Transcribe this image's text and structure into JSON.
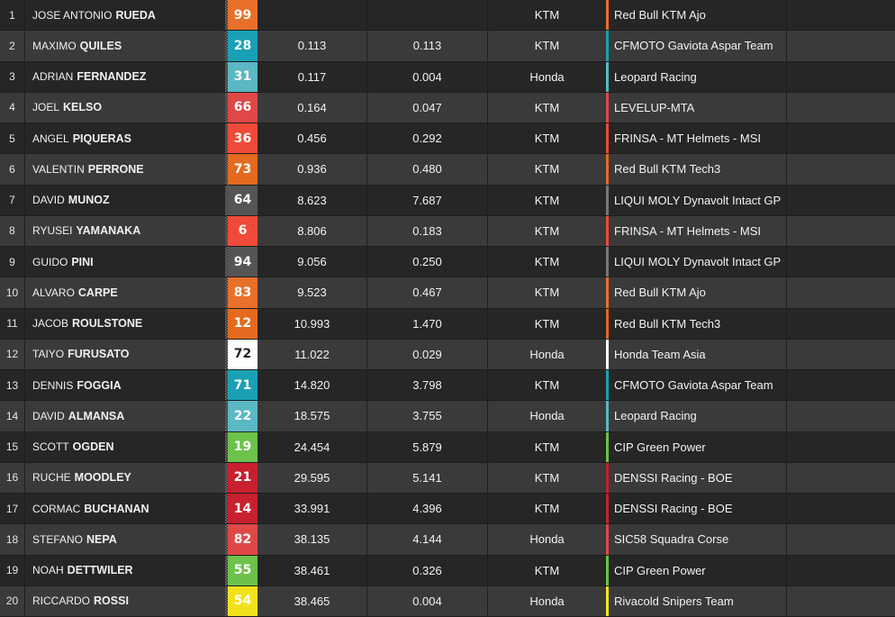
{
  "results": [
    {
      "pos": "1",
      "first": "JOSE ANTONIO",
      "last": "RUEDA",
      "number": "99",
      "num_color": "#e8702a",
      "gap_first": "",
      "gap_prev": "",
      "manufacturer": "KTM",
      "team": "Red Bull KTM Ajo",
      "team_color": "#e8702a"
    },
    {
      "pos": "2",
      "first": "MAXIMO",
      "last": "QUILES",
      "number": "28",
      "num_color": "#1aa0b4",
      "gap_first": "0.113",
      "gap_prev": "0.113",
      "manufacturer": "KTM",
      "team": "CFMOTO Gaviota Aspar Team",
      "team_color": "#1aa0b4"
    },
    {
      "pos": "3",
      "first": "ADRIAN",
      "last": "FERNANDEZ",
      "number": "31",
      "num_color": "#5bb8c4",
      "gap_first": "0.117",
      "gap_prev": "0.004",
      "manufacturer": "Honda",
      "team": "Leopard Racing",
      "team_color": "#5bb8c4"
    },
    {
      "pos": "4",
      "first": "JOEL",
      "last": "KELSO",
      "number": "66",
      "num_color": "#e04848",
      "gap_first": "0.164",
      "gap_prev": "0.047",
      "manufacturer": "KTM",
      "team": "LEVELUP-MTA",
      "team_color": "#e04848"
    },
    {
      "pos": "5",
      "first": "ANGEL",
      "last": "PIQUERAS",
      "number": "36",
      "num_color": "#f04a3a",
      "gap_first": "0.456",
      "gap_prev": "0.292",
      "manufacturer": "KTM",
      "team": "FRINSA - MT Helmets - MSI",
      "team_color": "#f04a3a"
    },
    {
      "pos": "6",
      "first": "VALENTIN",
      "last": "PERRONE",
      "number": "73",
      "num_color": "#e36a1e",
      "gap_first": "0.936",
      "gap_prev": "0.480",
      "manufacturer": "KTM",
      "team": "Red Bull KTM Tech3",
      "team_color": "#e36a1e"
    },
    {
      "pos": "7",
      "first": "DAVID",
      "last": "MUNOZ",
      "number": "64",
      "num_color": "#555555",
      "gap_first": "8.623",
      "gap_prev": "7.687",
      "manufacturer": "KTM",
      "team": "LIQUI MOLY Dynavolt Intact GP",
      "team_color": "#777777"
    },
    {
      "pos": "8",
      "first": "RYUSEI",
      "last": "YAMANAKA",
      "number": "6",
      "num_color": "#f04a3a",
      "gap_first": "8.806",
      "gap_prev": "0.183",
      "manufacturer": "KTM",
      "team": "FRINSA - MT Helmets - MSI",
      "team_color": "#f04a3a"
    },
    {
      "pos": "9",
      "first": "GUIDO",
      "last": "PINI",
      "number": "94",
      "num_color": "#555555",
      "gap_first": "9.056",
      "gap_prev": "0.250",
      "manufacturer": "KTM",
      "team": "LIQUI MOLY Dynavolt Intact GP",
      "team_color": "#777777"
    },
    {
      "pos": "10",
      "first": "ALVARO",
      "last": "CARPE",
      "number": "83",
      "num_color": "#e8702a",
      "gap_first": "9.523",
      "gap_prev": "0.467",
      "manufacturer": "KTM",
      "team": "Red Bull KTM Ajo",
      "team_color": "#e8702a"
    },
    {
      "pos": "11",
      "first": "JACOB",
      "last": "ROULSTONE",
      "number": "12",
      "num_color": "#e36a1e",
      "gap_first": "10.993",
      "gap_prev": "1.470",
      "manufacturer": "KTM",
      "team": "Red Bull KTM Tech3",
      "team_color": "#e36a1e"
    },
    {
      "pos": "12",
      "first": "TAIYO",
      "last": "FURUSATO",
      "number": "72",
      "num_color": "#ffffff",
      "num_text": "#222222",
      "gap_first": "11.022",
      "gap_prev": "0.029",
      "manufacturer": "Honda",
      "team": "Honda Team Asia",
      "team_color": "#ffffff"
    },
    {
      "pos": "13",
      "first": "DENNIS",
      "last": "FOGGIA",
      "number": "71",
      "num_color": "#1aa0b4",
      "gap_first": "14.820",
      "gap_prev": "3.798",
      "manufacturer": "KTM",
      "team": "CFMOTO Gaviota Aspar Team",
      "team_color": "#1aa0b4"
    },
    {
      "pos": "14",
      "first": "DAVID",
      "last": "ALMANSA",
      "number": "22",
      "num_color": "#5bb8c4",
      "gap_first": "18.575",
      "gap_prev": "3.755",
      "manufacturer": "Honda",
      "team": "Leopard Racing",
      "team_color": "#5bb8c4"
    },
    {
      "pos": "15",
      "first": "SCOTT",
      "last": "OGDEN",
      "number": "19",
      "num_color": "#6cc24a",
      "gap_first": "24.454",
      "gap_prev": "5.879",
      "manufacturer": "KTM",
      "team": "CIP Green Power",
      "team_color": "#6cc24a"
    },
    {
      "pos": "16",
      "first": "RUCHE",
      "last": "MOODLEY",
      "number": "21",
      "num_color": "#c8202e",
      "gap_first": "29.595",
      "gap_prev": "5.141",
      "manufacturer": "KTM",
      "team": "DENSSI Racing - BOE",
      "team_color": "#c8202e"
    },
    {
      "pos": "17",
      "first": "CORMAC",
      "last": "BUCHANAN",
      "number": "14",
      "num_color": "#c8202e",
      "gap_first": "33.991",
      "gap_prev": "4.396",
      "manufacturer": "KTM",
      "team": "DENSSI Racing - BOE",
      "team_color": "#c8202e"
    },
    {
      "pos": "18",
      "first": "STEFANO",
      "last": "NEPA",
      "number": "82",
      "num_color": "#e04848",
      "gap_first": "38.135",
      "gap_prev": "4.144",
      "manufacturer": "Honda",
      "team": "SIC58 Squadra Corse",
      "team_color": "#e04848"
    },
    {
      "pos": "19",
      "first": "NOAH",
      "last": "DETTWILER",
      "number": "55",
      "num_color": "#6cc24a",
      "gap_first": "38.461",
      "gap_prev": "0.326",
      "manufacturer": "KTM",
      "team": "CIP Green Power",
      "team_color": "#6cc24a"
    },
    {
      "pos": "20",
      "first": "RICCARDO",
      "last": "ROSSI",
      "number": "54",
      "num_color": "#f2e21c",
      "gap_first": "38.465",
      "gap_prev": "0.004",
      "manufacturer": "Honda",
      "team": "Rivacold Snipers Team",
      "team_color": "#f2e21c"
    }
  ]
}
